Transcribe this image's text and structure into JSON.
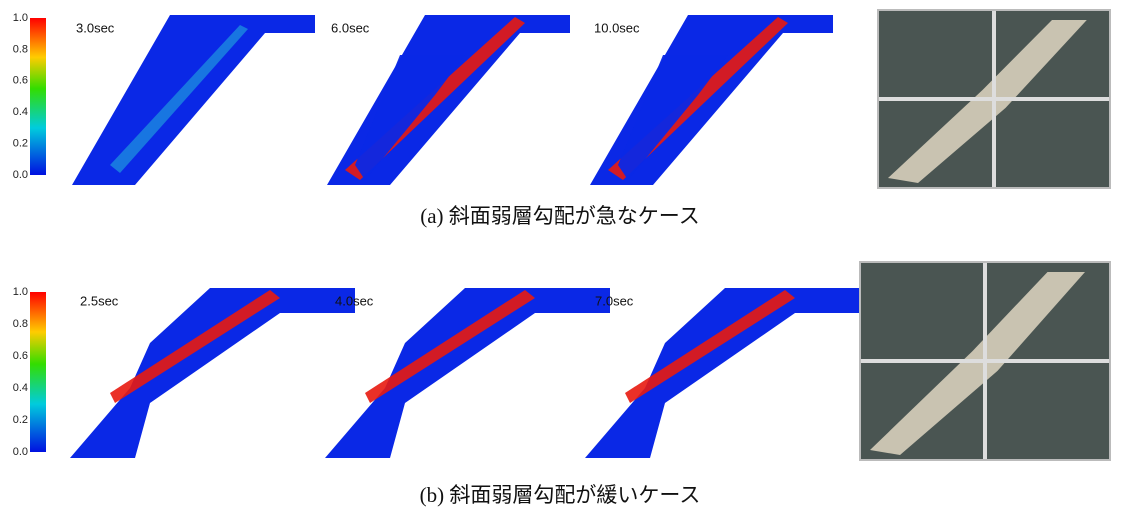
{
  "rows": [
    {
      "colorbar_ticks": [
        "1.0",
        "0.8",
        "0.6",
        "0.4",
        "0.2",
        "0.0"
      ],
      "panels": [
        "3.0sec",
        "6.0sec",
        "10.0sec"
      ],
      "caption": "(a)  斜面弱層勾配が急なケース"
    },
    {
      "colorbar_ticks": [
        "1.0",
        "0.8",
        "0.6",
        "0.4",
        "0.2",
        "0.0"
      ],
      "panels": [
        "2.5sec",
        "4.0sec",
        "7.0sec"
      ],
      "caption": "(b)  斜面弱層勾配が緩いケース"
    }
  ]
}
